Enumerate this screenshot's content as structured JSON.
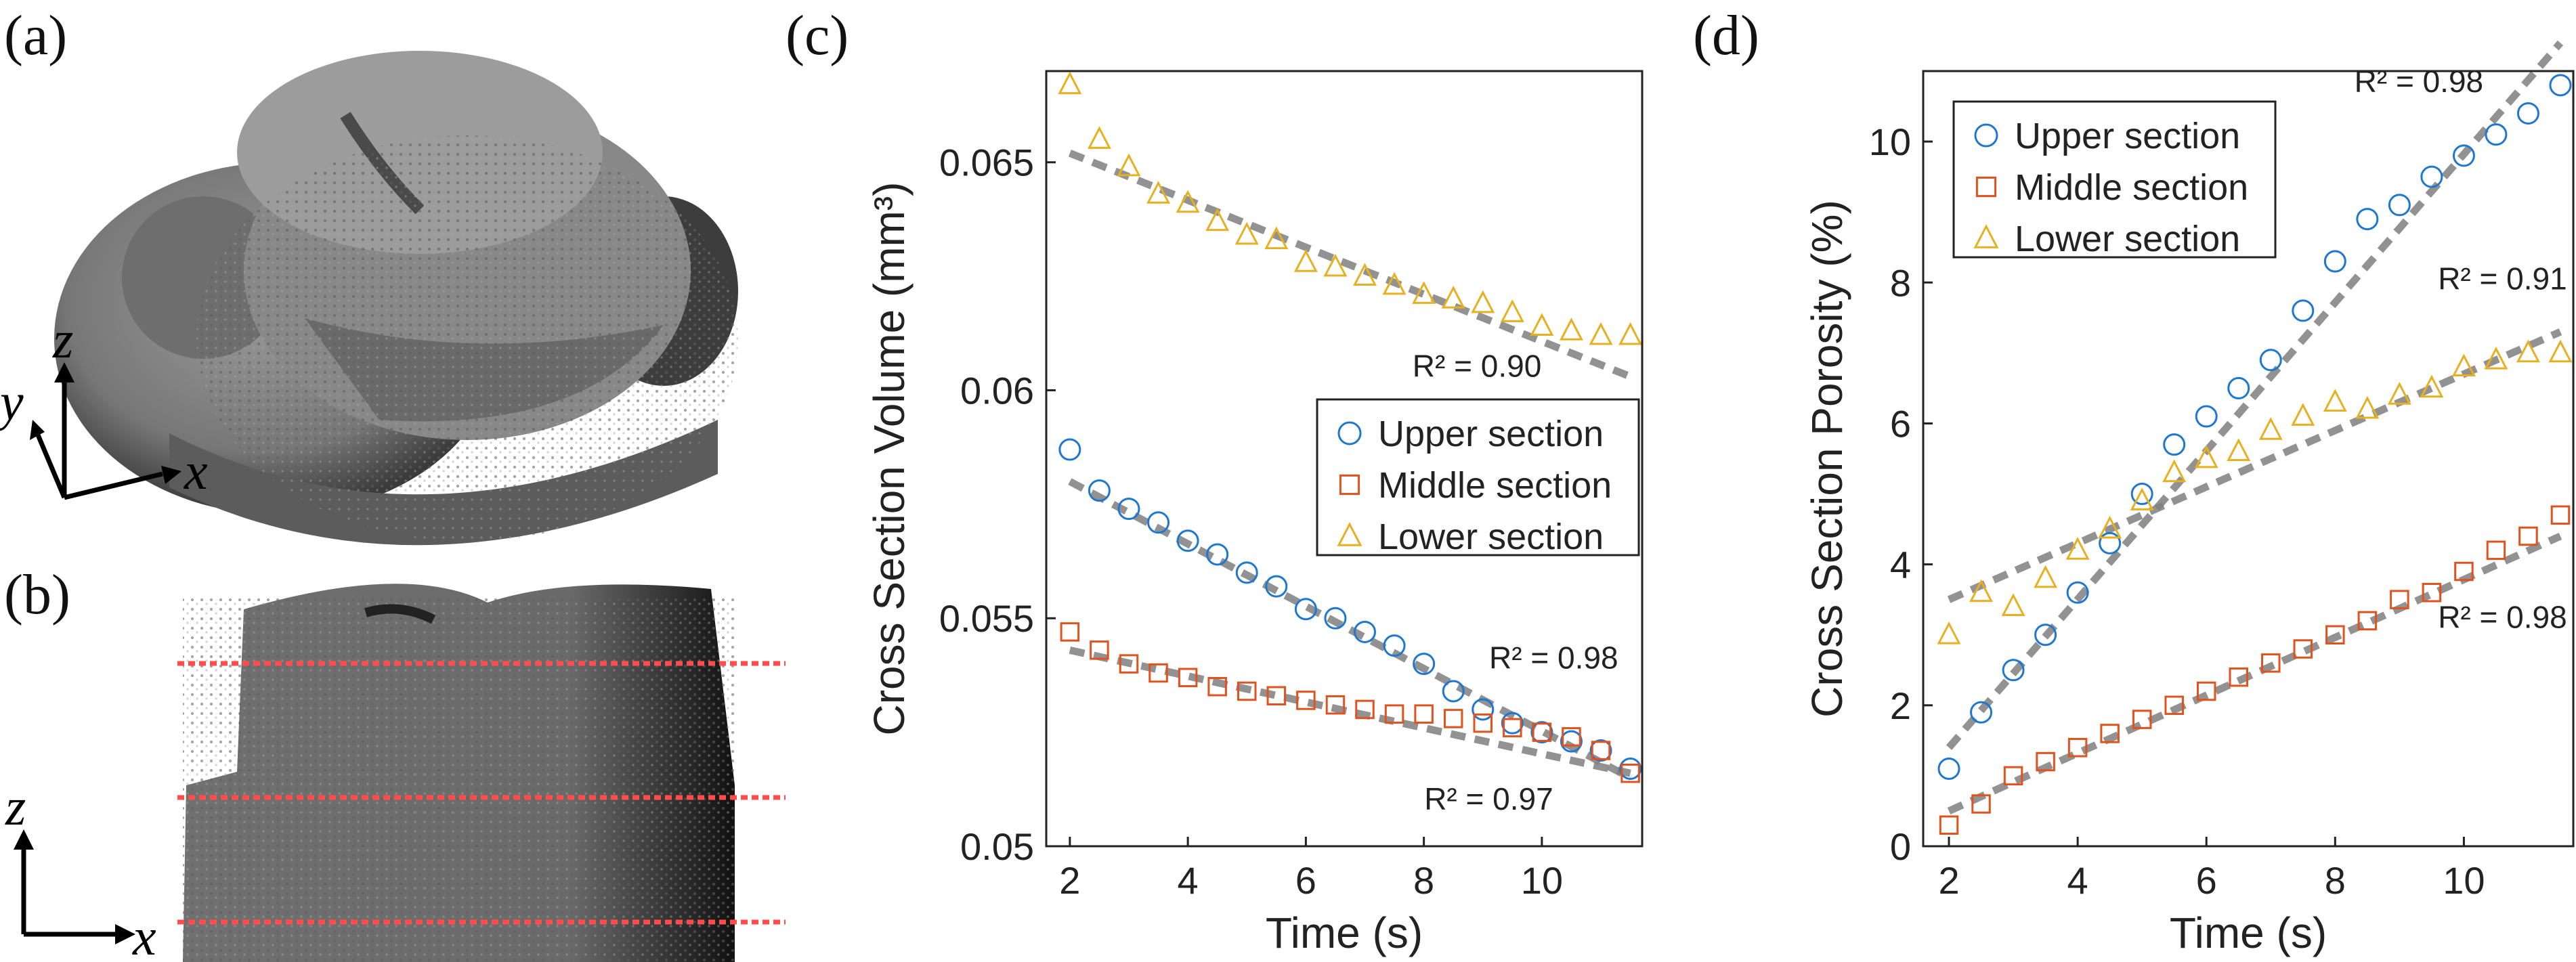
{
  "panels": {
    "a": "(a)",
    "b": "(b)",
    "c": "(c)",
    "d": "(d)"
  },
  "axes_glyphs": {
    "a": {
      "z": "z",
      "y": "y",
      "x": "x"
    },
    "b": {
      "z": "z",
      "x": "x"
    }
  },
  "colors": {
    "upper": "#1f77d0",
    "middle": "#e0521e",
    "lower": "#e6b020",
    "fit": "#808080",
    "slice_line": "#ff4d4d",
    "render": "#7d7d7d"
  },
  "chart_data": [
    {
      "type": "scatter",
      "panel": "c",
      "xlabel": "Time (s)",
      "ylabel": "Cross Section Volume (mm³)",
      "xlim": [
        1.6,
        11.7
      ],
      "ylim": [
        0.05,
        0.067
      ],
      "xticks": [
        2,
        4,
        6,
        8,
        10
      ],
      "yticks": [
        0.05,
        0.055,
        0.06,
        0.065
      ],
      "ytick_labels": [
        "0.05",
        "0.055",
        "0.06",
        "0.065"
      ],
      "legend": [
        "Upper section",
        "Middle section",
        "Lower section"
      ],
      "legend_position": "center-right",
      "series": [
        {
          "name": "Upper section",
          "marker": "circle",
          "x": [
            2.0,
            2.5,
            3.0,
            3.5,
            4.0,
            4.5,
            5.0,
            5.5,
            6.0,
            6.5,
            7.0,
            7.5,
            8.0,
            8.5,
            9.0,
            9.5,
            10.0,
            10.5,
            11.0,
            11.5
          ],
          "y": [
            0.0587,
            0.0578,
            0.0574,
            0.0571,
            0.0567,
            0.0564,
            0.056,
            0.0557,
            0.0552,
            0.055,
            0.0547,
            0.0544,
            0.054,
            0.0534,
            0.053,
            0.0527,
            0.0525,
            0.0523,
            0.0521,
            0.0517
          ]
        },
        {
          "name": "Middle section",
          "marker": "square",
          "x": [
            2.0,
            2.5,
            3.0,
            3.5,
            4.0,
            4.5,
            5.0,
            5.5,
            6.0,
            6.5,
            7.0,
            7.5,
            8.0,
            8.5,
            9.0,
            9.5,
            10.0,
            10.5,
            11.0,
            11.5
          ],
          "y": [
            0.0547,
            0.0543,
            0.054,
            0.0538,
            0.0537,
            0.0535,
            0.0534,
            0.0533,
            0.0532,
            0.0531,
            0.053,
            0.0529,
            0.0529,
            0.0528,
            0.0527,
            0.0526,
            0.0525,
            0.0524,
            0.0521,
            0.0516
          ]
        },
        {
          "name": "Lower section",
          "marker": "triangle",
          "x": [
            2.0,
            2.5,
            3.0,
            3.5,
            4.0,
            4.5,
            5.0,
            5.5,
            6.0,
            6.5,
            7.0,
            7.5,
            8.0,
            8.5,
            9.0,
            9.5,
            10.0,
            10.5,
            11.0,
            11.5
          ],
          "y": [
            0.0667,
            0.0655,
            0.0649,
            0.0643,
            0.0641,
            0.0637,
            0.0634,
            0.0633,
            0.0628,
            0.0627,
            0.0625,
            0.0623,
            0.0621,
            0.062,
            0.0619,
            0.0617,
            0.0614,
            0.0613,
            0.0612,
            0.0612
          ]
        }
      ],
      "fits": [
        {
          "series": "Upper section",
          "x": [
            2.0,
            11.5
          ],
          "y": [
            0.058,
            0.0515
          ]
        },
        {
          "series": "Middle section",
          "x": [
            2.0,
            11.5
          ],
          "y": [
            0.0543,
            0.0516
          ]
        },
        {
          "series": "Lower section",
          "x": [
            2.0,
            11.5
          ],
          "y": [
            0.0652,
            0.0603
          ]
        }
      ],
      "annotations": [
        {
          "text": "R² = 0.90",
          "x": 8.9,
          "y": 0.0603
        },
        {
          "text": "R² = 0.98",
          "x": 10.2,
          "y": 0.0539
        },
        {
          "text": "R² = 0.97",
          "x": 9.1,
          "y": 0.0508
        }
      ]
    },
    {
      "type": "scatter",
      "panel": "d",
      "xlabel": "Time (s)",
      "ylabel": "Cross Section Porosity (%)",
      "xlim": [
        1.6,
        11.7
      ],
      "ylim": [
        0,
        11
      ],
      "xticks": [
        2,
        4,
        6,
        8,
        10
      ],
      "yticks": [
        0,
        2,
        4,
        6,
        8,
        10
      ],
      "ytick_labels": [
        "0",
        "2",
        "4",
        "6",
        "8",
        "10"
      ],
      "legend": [
        "Upper section",
        "Middle section",
        "Lower section"
      ],
      "legend_position": "top-left",
      "series": [
        {
          "name": "Upper section",
          "marker": "circle",
          "x": [
            2.0,
            2.5,
            3.0,
            3.5,
            4.0,
            4.5,
            5.0,
            5.5,
            6.0,
            6.5,
            7.0,
            7.5,
            8.0,
            8.5,
            9.0,
            9.5,
            10.0,
            10.5,
            11.0,
            11.5
          ],
          "y": [
            1.1,
            1.9,
            2.5,
            3.0,
            3.6,
            4.3,
            5.0,
            5.7,
            6.1,
            6.5,
            6.9,
            7.6,
            8.3,
            8.9,
            9.1,
            9.5,
            9.8,
            10.1,
            10.4,
            10.8
          ]
        },
        {
          "name": "Middle section",
          "marker": "square",
          "x": [
            2.0,
            2.5,
            3.0,
            3.5,
            4.0,
            4.5,
            5.0,
            5.5,
            6.0,
            6.5,
            7.0,
            7.5,
            8.0,
            8.5,
            9.0,
            9.5,
            10.0,
            10.5,
            11.0,
            11.5
          ],
          "y": [
            0.3,
            0.6,
            1.0,
            1.2,
            1.4,
            1.6,
            1.8,
            2.0,
            2.2,
            2.4,
            2.6,
            2.8,
            3.0,
            3.2,
            3.5,
            3.6,
            3.9,
            4.2,
            4.4,
            4.7
          ]
        },
        {
          "name": "Lower section",
          "marker": "triangle",
          "x": [
            2.0,
            2.5,
            3.0,
            3.5,
            4.0,
            4.5,
            5.0,
            5.5,
            6.0,
            6.5,
            7.0,
            7.5,
            8.0,
            8.5,
            9.0,
            9.5,
            10.0,
            10.5,
            11.0,
            11.5
          ],
          "y": [
            3.0,
            3.6,
            3.4,
            3.8,
            4.2,
            4.5,
            4.9,
            5.3,
            5.5,
            5.6,
            5.9,
            6.1,
            6.3,
            6.2,
            6.4,
            6.5,
            6.8,
            6.9,
            7.0,
            7.0
          ]
        }
      ],
      "fits": [
        {
          "series": "Upper section",
          "x": [
            2.0,
            11.5
          ],
          "y": [
            1.4,
            11.4
          ]
        },
        {
          "series": "Middle section",
          "x": [
            2.0,
            11.5
          ],
          "y": [
            0.5,
            4.4
          ]
        },
        {
          "series": "Lower section",
          "x": [
            2.0,
            11.5
          ],
          "y": [
            3.5,
            7.3
          ]
        }
      ],
      "annotations": [
        {
          "text": "R² = 0.98",
          "x": 9.3,
          "y": 10.7
        },
        {
          "text": "R² = 0.91",
          "x": 10.6,
          "y": 7.9
        },
        {
          "text": "R² = 0.98",
          "x": 10.6,
          "y": 3.1
        }
      ]
    }
  ]
}
